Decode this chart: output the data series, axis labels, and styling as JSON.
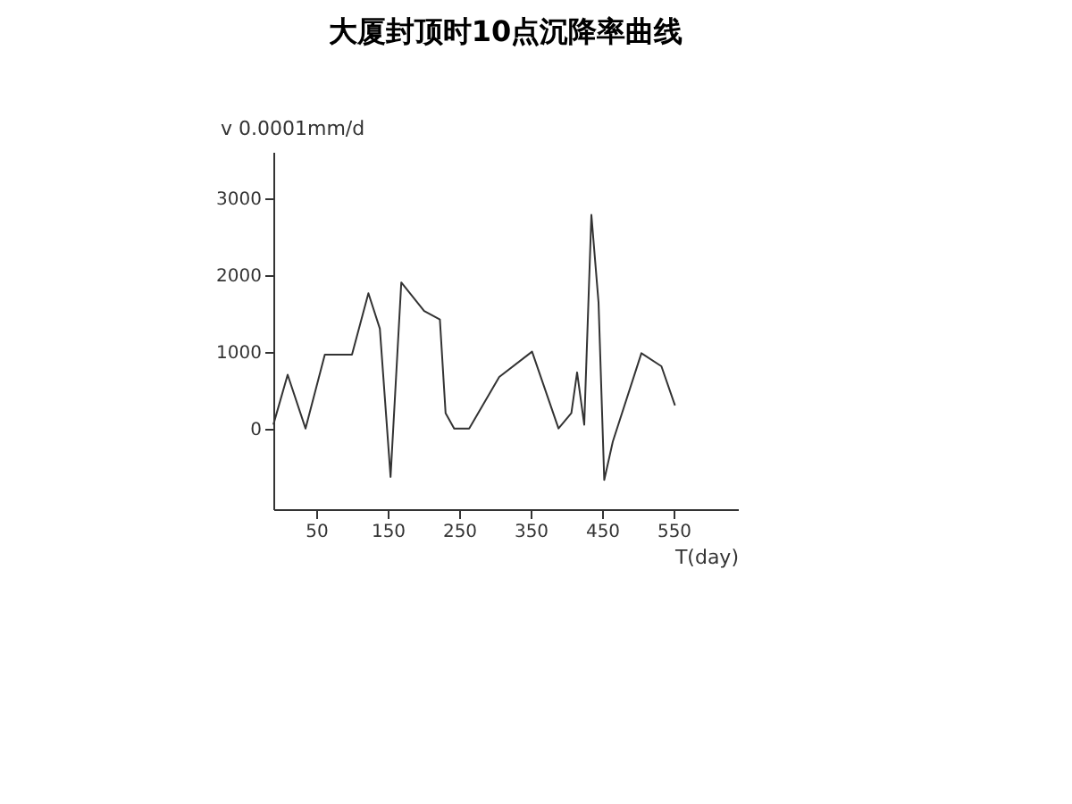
{
  "chart_data": {
    "type": "line",
    "title": "大厦封顶时10点沉降率曲线",
    "xlabel": "T(day)",
    "ylabel": "v 0.0001mm/d",
    "x": [
      -10,
      10,
      35,
      62,
      100,
      123,
      139,
      154,
      169,
      201,
      223,
      231,
      243,
      264,
      306,
      352,
      389,
      407,
      415,
      425,
      435,
      445,
      453,
      465,
      505,
      533,
      552
    ],
    "series": [
      {
        "color": "#333333",
        "values": [
          50,
          700,
          0,
          960,
          960,
          1760,
          1300,
          -630,
          1900,
          1530,
          1420,
          200,
          0,
          0,
          670,
          1000,
          0,
          200,
          730,
          50,
          2780,
          1640,
          -670,
          -170,
          980,
          810,
          300
        ]
      }
    ],
    "xlim": [
      -10,
      640
    ],
    "xticks": [
      50,
      150,
      250,
      350,
      450,
      550
    ],
    "ylim": [
      -1050,
      3600
    ],
    "yticks": [
      0,
      1000,
      2000,
      3000
    ],
    "grid": false,
    "legend": false,
    "marker": "none",
    "line_style": "solid"
  }
}
